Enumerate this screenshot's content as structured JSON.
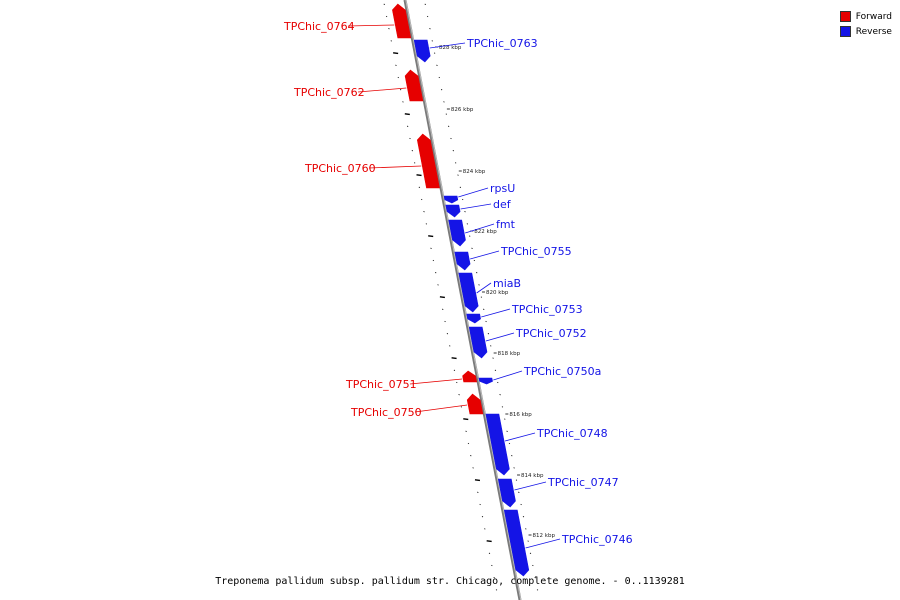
{
  "colors": {
    "forward": "#e60000",
    "reverse": "#1414e6",
    "backbone": "#7a7a7a"
  },
  "legend": [
    {
      "label": "Forward",
      "color": "#e60000"
    },
    {
      "label": "Reverse",
      "color": "#1414e6"
    }
  ],
  "caption": "Treponema pallidum subsp. pallidum str. Chicago, complete genome. - 0..1139281",
  "kbp_markers": [
    "828 kbp",
    "826 kbp",
    "824 kbp",
    "822 kbp",
    "820 kbp",
    "818 kbp",
    "816 kbp",
    "814 kbp",
    "812 kbp"
  ],
  "genes": [
    {
      "name": "TPChic_0764",
      "strand": "forward"
    },
    {
      "name": "TPChic_0763",
      "strand": "reverse"
    },
    {
      "name": "TPChic_0762",
      "strand": "forward"
    },
    {
      "name": "TPChic_0760",
      "strand": "forward"
    },
    {
      "name": "rpsU",
      "strand": "reverse"
    },
    {
      "name": "def",
      "strand": "reverse"
    },
    {
      "name": "fmt",
      "strand": "reverse"
    },
    {
      "name": "TPChic_0755",
      "strand": "reverse"
    },
    {
      "name": "miaB",
      "strand": "reverse"
    },
    {
      "name": "TPChic_0753",
      "strand": "reverse"
    },
    {
      "name": "TPChic_0752",
      "strand": "reverse"
    },
    {
      "name": "TPChic_0751",
      "strand": "forward"
    },
    {
      "name": "TPChic_0750a",
      "strand": "reverse"
    },
    {
      "name": "TPChic_0750",
      "strand": "forward"
    },
    {
      "name": "TPChic_0748",
      "strand": "reverse"
    },
    {
      "name": "TPChic_0747",
      "strand": "reverse"
    },
    {
      "name": "TPChic_0746",
      "strand": "reverse"
    }
  ]
}
